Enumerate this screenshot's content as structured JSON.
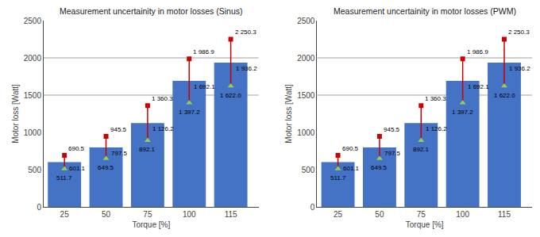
{
  "chart_data": [
    {
      "type": "bar",
      "title": "Measurement uncertainity in motor losses (Sinus)",
      "xlabel": "Torque [%]",
      "ylabel": "Motor loss [Watt]",
      "categories": [
        "25",
        "50",
        "75",
        "100",
        "115"
      ],
      "values": [
        601.1,
        797.5,
        1126.2,
        1692.1,
        1936.2
      ],
      "value_labels": [
        "601.1",
        "797.5",
        "1 126.2",
        "1 692.1",
        "1 936.2"
      ],
      "data_labels": true,
      "color": "#4472C4",
      "error_bars": {
        "color": "#CC0000",
        "low": {
          "values": [
            511.7,
            649.5,
            892.1,
            1397.2,
            1622.0
          ],
          "value_labels": [
            "511.7",
            "649.5",
            "892.1",
            "1 397.2",
            "1 622.0"
          ],
          "color": "#92D050",
          "marker": "triangle-up"
        },
        "high": {
          "values": [
            690.5,
            945.5,
            1360.3,
            1986.9,
            2250.3
          ],
          "value_labels": [
            "690.5",
            "945.5",
            "1 360.3",
            "1 986.9",
            "2 250.3"
          ],
          "color": "#CC0000",
          "marker": "square"
        }
      },
      "ylim": [
        0,
        2500
      ],
      "yticks": [
        0,
        500,
        1000,
        1500,
        2000,
        2500
      ],
      "grid": {
        "values": [
          1500,
          2000
        ],
        "color": "#A0A0A0"
      }
    },
    {
      "type": "bar",
      "title": "Measurement uncertainity in motor losses (PWM)",
      "xlabel": "Torque [%]",
      "ylabel": "Motor loss [Watt]",
      "categories": [
        "25",
        "50",
        "75",
        "100",
        "115"
      ],
      "values": [
        601.1,
        797.5,
        1126.2,
        1692.1,
        1936.2
      ],
      "value_labels": [
        "601.1",
        "797.5",
        "1 126.2",
        "1 692.1",
        "1 936.2"
      ],
      "data_labels": true,
      "color": "#4472C4",
      "error_bars": {
        "color": "#CC0000",
        "low": {
          "values": [
            511.7,
            649.5,
            892.1,
            1397.2,
            1622.0
          ],
          "value_labels": [
            "511.7",
            "649.5",
            "892.1",
            "1 397.2",
            "1 622.0"
          ],
          "color": "#92D050",
          "marker": "triangle-up"
        },
        "high": {
          "values": [
            690.5,
            945.5,
            1360.3,
            1986.9,
            2250.3
          ],
          "value_labels": [
            "690.5",
            "945.5",
            "1 360.3",
            "1 986.9",
            "2 250.3"
          ],
          "color": "#CC0000",
          "marker": "square"
        }
      },
      "ylim": [
        0,
        2500
      ],
      "yticks": [
        0,
        500,
        1000,
        1500,
        2000,
        2500
      ],
      "grid": {
        "values": [
          1500,
          2000
        ],
        "color": "#A0A0A0"
      }
    }
  ]
}
